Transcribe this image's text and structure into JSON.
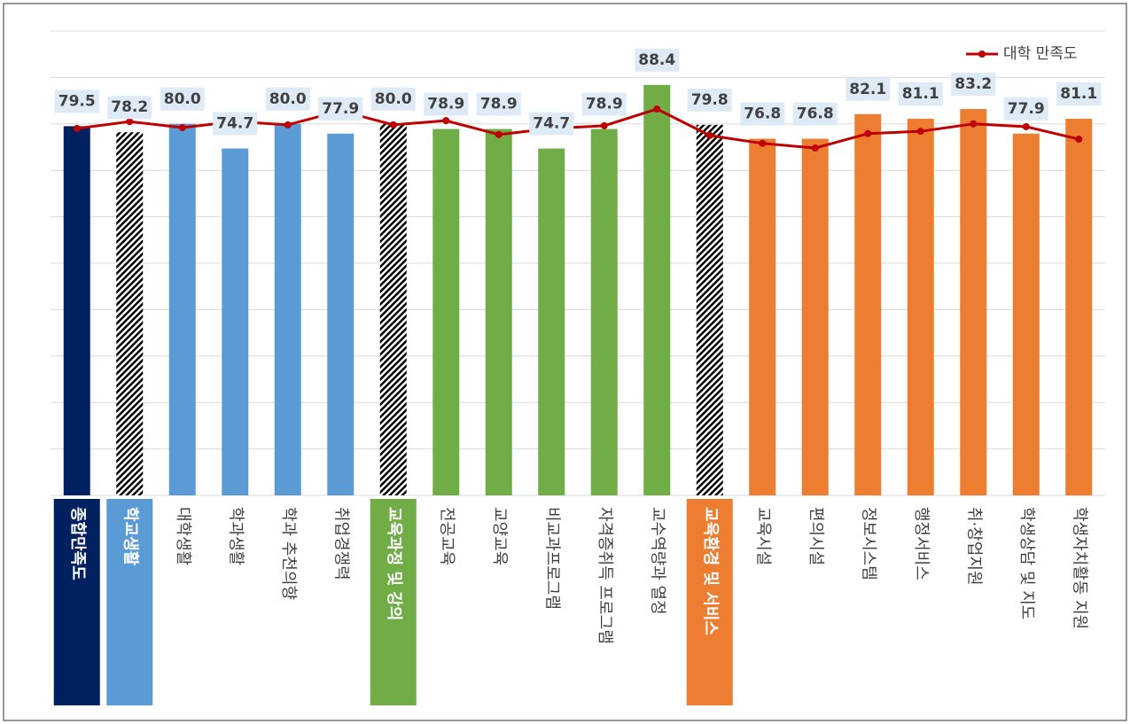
{
  "chart_data": {
    "type": "bar_line",
    "categories": [
      "종합만족도",
      "학교생활",
      "대학생활",
      "학과생활",
      "학과 추천의향",
      "취업경쟁력",
      "교육과정 및 강의",
      "전공교육",
      "교양교육",
      "비교과프로그램",
      "자격증취득 프로그램",
      "교수역량과 열정",
      "교육환경 및 서비스",
      "교육시설",
      "편의시설",
      "정보시스템",
      "행정서비스",
      "취·창업지원",
      "학생상담 및 지도",
      "학생자치활동 지원"
    ],
    "values": [
      79.5,
      78.2,
      80.0,
      74.7,
      80.0,
      77.9,
      80.0,
      78.9,
      78.9,
      74.7,
      78.9,
      88.4,
      79.8,
      76.8,
      76.8,
      82.1,
      81.1,
      83.2,
      77.9,
      81.1
    ],
    "value_labels": [
      "79.5",
      "78.2",
      "80.0",
      "74.7",
      "80.0",
      "77.9",
      "80.0",
      "78.9",
      "78.9",
      "74.7",
      "78.9",
      "88.4",
      "79.8",
      "76.8",
      "76.8",
      "82.1",
      "81.1",
      "83.2",
      "77.9",
      "81.1"
    ],
    "colors": [
      "#002060",
      "#5b9bd5",
      "#5b9bd5",
      "#5b9bd5",
      "#5b9bd5",
      "#5b9bd5",
      "#70ad47",
      "#70ad47",
      "#70ad47",
      "#70ad47",
      "#70ad47",
      "#70ad47",
      "#ed7d31",
      "#ed7d31",
      "#ed7d31",
      "#ed7d31",
      "#ed7d31",
      "#ed7d31",
      "#ed7d31",
      "#ed7d31"
    ],
    "bar_styles": [
      "solid",
      "hatched",
      "solid",
      "solid",
      "solid",
      "solid",
      "hatched",
      "solid",
      "solid",
      "solid",
      "solid",
      "solid",
      "hatched",
      "solid",
      "solid",
      "solid",
      "solid",
      "solid",
      "solid",
      "solid"
    ],
    "category_highlight": [
      true,
      true,
      false,
      false,
      false,
      false,
      true,
      false,
      false,
      false,
      false,
      false,
      true,
      false,
      false,
      false,
      false,
      false,
      false,
      false
    ],
    "series": [
      {
        "name": "대학 만족도",
        "color": "#c00000",
        "values": [
          79.0,
          80.5,
          79.2,
          80.5,
          79.8,
          82.8,
          79.8,
          80.7,
          77.7,
          79.0,
          79.6,
          83.2,
          77.5,
          75.8,
          74.8,
          77.9,
          78.4,
          80.0,
          79.4,
          76.7
        ]
      }
    ],
    "ylim": [
      0,
      100
    ],
    "yticks": [
      0,
      10,
      20,
      30,
      40,
      50,
      60,
      70,
      80,
      90,
      100
    ],
    "grid": true,
    "legend": "top-right"
  }
}
